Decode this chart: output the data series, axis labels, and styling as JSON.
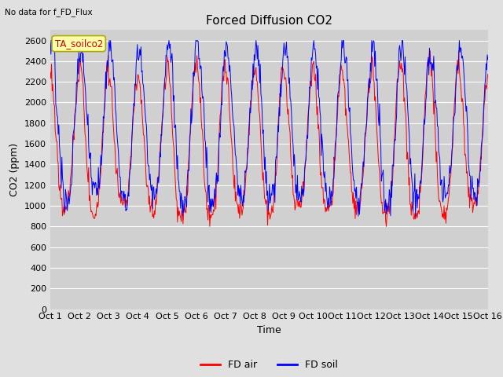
{
  "title": "Forced Diffusion CO2",
  "top_left_text": "No data for f_FD_Flux",
  "annotation_box_text": "TA_soilco2",
  "xlabel": "Time",
  "ylabel": "CO2 (ppm)",
  "ylim": [
    0,
    2700
  ],
  "yticks": [
    0,
    200,
    400,
    600,
    800,
    1000,
    1200,
    1400,
    1600,
    1800,
    2000,
    2200,
    2400,
    2600
  ],
  "x_labels": [
    "Oct 1",
    "Oct 2",
    "Oct 3",
    "Oct 4",
    "Oct 5",
    "Oct 6",
    "Oct 7",
    "Oct 8",
    "Oct 9",
    "Oct 10",
    "Oct 11",
    "Oct 12",
    "Oct 13",
    "Oct 14",
    "Oct 15",
    "Oct 16"
  ],
  "line_colors": [
    "#ff0000",
    "#0000ff"
  ],
  "legend_labels": [
    "FD air",
    "FD soil"
  ],
  "fig_bg_color": "#e0e0e0",
  "plot_bg_color": "#d0d0d0",
  "title_fontsize": 11,
  "axis_label_fontsize": 9,
  "tick_fontsize": 8,
  "annotation_box_facecolor": "#ffffaa",
  "annotation_box_edgecolor": "#aaaa00",
  "annotation_text_color": "#cc0000",
  "grid_color": "#ffffff",
  "n_days": 15,
  "n_per_day": 48
}
